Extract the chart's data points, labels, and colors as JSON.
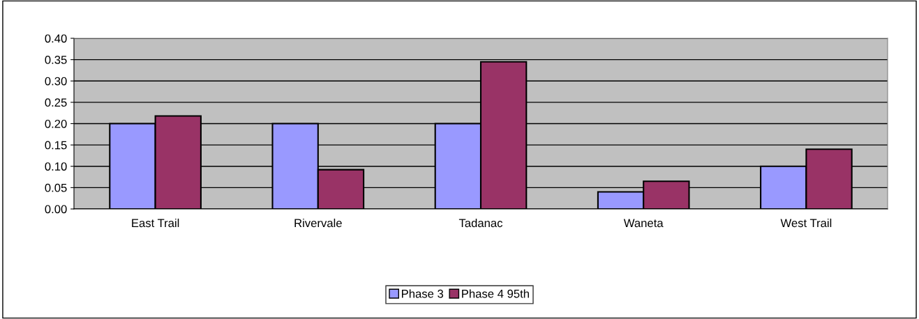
{
  "chart_data": {
    "type": "bar",
    "categories": [
      "East Trail",
      "Rivervale",
      "Tadanac",
      "Waneta",
      "West Trail"
    ],
    "series": [
      {
        "name": "Phase 3",
        "color": "#9999ff",
        "values": [
          0.2,
          0.2,
          0.2,
          0.04,
          0.1
        ]
      },
      {
        "name": "Phase 4 95th",
        "color": "#993366",
        "values": [
          0.218,
          0.092,
          0.345,
          0.065,
          0.14
        ]
      }
    ],
    "ylim": [
      0,
      0.4
    ],
    "yticks": [
      {
        "value": 0,
        "label": "0.00"
      },
      {
        "value": 0.05,
        "label": "0.05"
      },
      {
        "value": 0.1,
        "label": "0.10"
      },
      {
        "value": 0.15,
        "label": "0.15"
      },
      {
        "value": 0.2,
        "label": "0.20"
      },
      {
        "value": 0.25,
        "label": "0.25"
      },
      {
        "value": 0.3,
        "label": "0.30"
      },
      {
        "value": 0.35,
        "label": "0.35"
      },
      {
        "value": 0.4,
        "label": "0.40"
      }
    ],
    "grid": "y",
    "legend": "bottom"
  }
}
